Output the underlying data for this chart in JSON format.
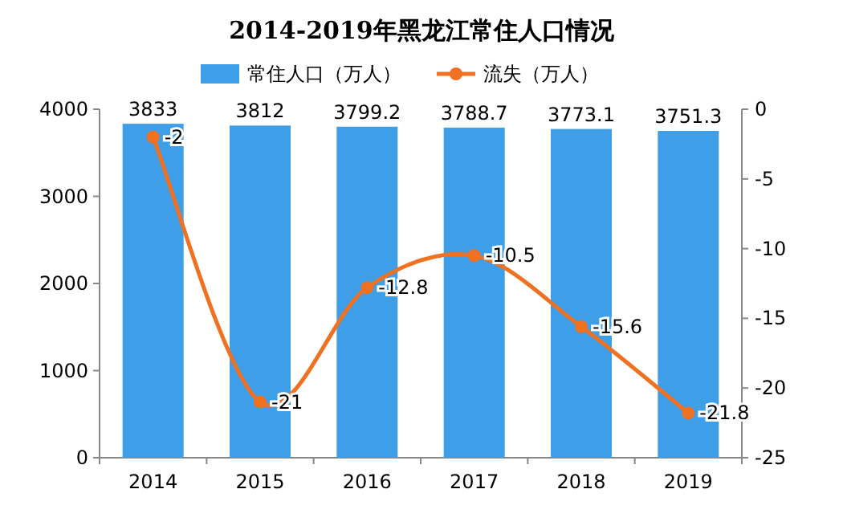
{
  "chart_data": {
    "type": "bar",
    "title": "2014-2019年黑龙江常住人口情况",
    "categories": [
      "2014",
      "2015",
      "2016",
      "2017",
      "2018",
      "2019"
    ],
    "series": [
      {
        "name": "常住人口（万人）",
        "color": "#3e9ee8",
        "values": [
          3833,
          3812,
          3799.2,
          3788.7,
          3773.1,
          3751.3
        ]
      },
      {
        "name": "流失（万人）",
        "type": "line",
        "axis": "y2",
        "color": "#f07122",
        "values": [
          -2,
          -21,
          -12.8,
          -10.5,
          -15.6,
          -21.8
        ]
      }
    ],
    "ylim": [
      0,
      4000
    ],
    "yticks": [
      0,
      1000,
      2000,
      3000,
      4000
    ],
    "y2lim": [
      -25,
      0
    ],
    "y2ticks": [
      0,
      -5,
      -10,
      -15,
      -20,
      -25
    ],
    "data_labels": true,
    "legend": "top",
    "marker": "circle",
    "grid": false
  }
}
